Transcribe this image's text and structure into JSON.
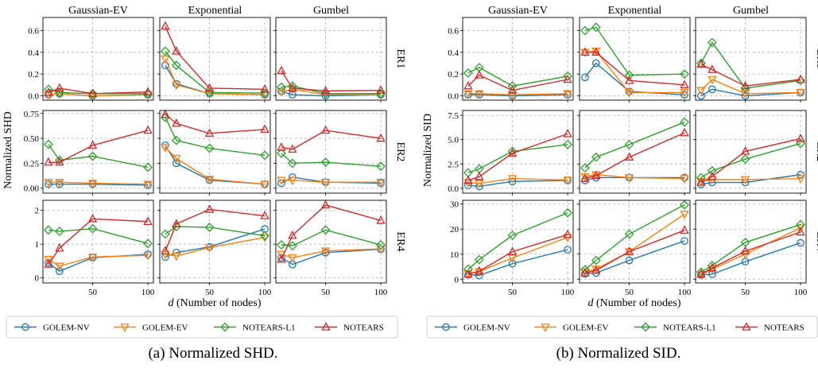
{
  "captions": [
    "(a) Normalized SHD.",
    "(b) Normalized SID."
  ],
  "legend_entries": [
    {
      "name": "GOLEM-NV",
      "color": "#1f77b4",
      "marker": "circle"
    },
    {
      "name": "GOLEM-EV",
      "color": "#ff7f0e",
      "marker": "triangle-down"
    },
    {
      "name": "NOTEARS-L1",
      "color": "#2ca02c",
      "marker": "diamond"
    },
    {
      "name": "NOTEARS",
      "color": "#d62728",
      "marker": "triangle-up"
    }
  ],
  "chart_data": [
    {
      "type": "line",
      "title": "Normalized SHD",
      "ylabel": "Normalized SHD",
      "xlabel": "d (Number of nodes)",
      "x": [
        10,
        20,
        50,
        100
      ],
      "xticks": [
        50,
        100
      ],
      "xlim": [
        5,
        105
      ],
      "col_titles": [
        "Gaussian-EV",
        "Exponential",
        "Gumbel"
      ],
      "row_titles": [
        "ER1",
        "ER2",
        "ER4"
      ],
      "row_ylims": [
        [
          -0.04,
          0.72
        ],
        [
          -0.05,
          0.78
        ],
        [
          -0.15,
          2.3
        ]
      ],
      "row_yticks": [
        [
          "0.0",
          "0.2",
          "0.4",
          "0.6"
        ],
        [
          "0.00",
          "0.25",
          "0.50",
          "0.75"
        ],
        [
          "0",
          "1",
          "2"
        ]
      ],
      "panels": [
        [
          {
            "GOLEM-NV": [
              0.01,
              0.02,
              0.0,
              0.01
            ],
            "GOLEM-EV": [
              0.01,
              0.02,
              0.0,
              0.01
            ],
            "NOTEARS-L1": [
              0.06,
              0.03,
              0.02,
              0.02
            ],
            "NOTEARS": [
              0.03,
              0.07,
              0.02,
              0.035
            ]
          },
          {
            "GOLEM-NV": [
              0.28,
              0.11,
              0.02,
              0.01
            ],
            "GOLEM-EV": [
              0.34,
              0.1,
              0.02,
              0.01
            ],
            "NOTEARS-L1": [
              0.41,
              0.28,
              0.03,
              0.025
            ],
            "NOTEARS": [
              0.64,
              0.41,
              0.07,
              0.06
            ]
          },
          {
            "GOLEM-NV": [
              0.04,
              0.01,
              0.0,
              0.01
            ],
            "GOLEM-EV": [
              0.04,
              0.06,
              0.01,
              0.01
            ],
            "NOTEARS-L1": [
              0.08,
              0.09,
              0.02,
              0.02
            ],
            "NOTEARS": [
              0.23,
              0.07,
              0.045,
              0.05
            ]
          }
        ],
        [
          {
            "GOLEM-NV": [
              0.04,
              0.04,
              0.04,
              0.03
            ],
            "GOLEM-EV": [
              0.06,
              0.06,
              0.05,
              0.04
            ],
            "NOTEARS-L1": [
              0.44,
              0.28,
              0.32,
              0.21
            ],
            "NOTEARS": [
              0.26,
              0.26,
              0.43,
              0.58
            ]
          },
          {
            "GOLEM-NV": [
              0.43,
              0.25,
              0.08,
              0.04
            ],
            "GOLEM-EV": [
              0.41,
              0.3,
              0.09,
              0.04
            ],
            "NOTEARS-L1": [
              0.71,
              0.48,
              0.4,
              0.33
            ],
            "NOTEARS": [
              0.74,
              0.65,
              0.55,
              0.59
            ]
          },
          {
            "GOLEM-NV": [
              0.05,
              0.11,
              0.06,
              0.05
            ],
            "GOLEM-EV": [
              0.08,
              0.08,
              0.06,
              0.06
            ],
            "NOTEARS-L1": [
              0.35,
              0.25,
              0.26,
              0.22
            ],
            "NOTEARS": [
              0.41,
              0.39,
              0.58,
              0.5
            ]
          }
        ],
        [
          {
            "GOLEM-NV": [
              0.45,
              0.2,
              0.6,
              0.7
            ],
            "GOLEM-EV": [
              0.55,
              0.35,
              0.62,
              0.67
            ],
            "NOTEARS-L1": [
              1.42,
              1.38,
              1.46,
              1.02
            ],
            "NOTEARS": [
              0.4,
              0.88,
              1.75,
              1.67
            ]
          },
          {
            "GOLEM-NV": [
              0.62,
              0.75,
              0.92,
              1.45
            ],
            "GOLEM-EV": [
              0.7,
              0.65,
              0.9,
              1.2
            ],
            "NOTEARS-L1": [
              1.3,
              1.52,
              1.5,
              1.25
            ],
            "NOTEARS": [
              0.8,
              1.6,
              2.03,
              1.84
            ]
          },
          {
            "GOLEM-NV": [
              0.6,
              0.4,
              0.75,
              0.85
            ],
            "GOLEM-EV": [
              0.7,
              0.6,
              0.8,
              0.86
            ],
            "NOTEARS-L1": [
              0.98,
              0.95,
              1.42,
              0.98
            ],
            "NOTEARS": [
              0.55,
              1.26,
              2.16,
              1.7
            ]
          }
        ]
      ]
    },
    {
      "type": "line",
      "title": "Normalized SID",
      "ylabel": "Normalized SID",
      "xlabel": "d (Number of nodes)",
      "x": [
        10,
        20,
        50,
        100
      ],
      "xticks": [
        50,
        100
      ],
      "xlim": [
        5,
        105
      ],
      "col_titles": [
        "Gaussian-EV",
        "Exponential",
        "Gumbel"
      ],
      "row_titles": [
        "ER1",
        "ER2",
        "ER4"
      ],
      "row_ylims": [
        [
          -0.04,
          0.72
        ],
        [
          -0.5,
          8.0
        ],
        [
          -1.5,
          31.5
        ]
      ],
      "row_yticks": [
        [
          "0.0",
          "0.2",
          "0.4",
          "0.6"
        ],
        [
          "0.0",
          "2.5",
          "5.0",
          "7.5"
        ],
        [
          "0",
          "10",
          "20",
          "30"
        ]
      ],
      "panels": [
        [
          {
            "GOLEM-NV": [
              0.01,
              0.01,
              0.0,
              0.01
            ],
            "GOLEM-EV": [
              0.02,
              0.02,
              0.01,
              0.02
            ],
            "NOTEARS-L1": [
              0.21,
              0.26,
              0.09,
              0.18
            ],
            "NOTEARS": [
              0.09,
              0.19,
              0.05,
              0.15
            ]
          },
          {
            "GOLEM-NV": [
              0.17,
              0.3,
              0.04,
              0.01
            ],
            "GOLEM-EV": [
              0.4,
              0.41,
              0.03,
              0.03
            ],
            "NOTEARS-L1": [
              0.6,
              0.63,
              0.19,
              0.2
            ],
            "NOTEARS": [
              0.4,
              0.4,
              0.14,
              0.1
            ]
          },
          {
            "GOLEM-NV": [
              0.0,
              0.06,
              0.0,
              0.03
            ],
            "GOLEM-EV": [
              0.05,
              0.15,
              0.02,
              0.03
            ],
            "NOTEARS-L1": [
              0.3,
              0.49,
              0.07,
              0.14
            ],
            "NOTEARS": [
              0.29,
              0.24,
              0.09,
              0.15
            ]
          }
        ],
        [
          {
            "GOLEM-NV": [
              0.3,
              0.2,
              0.7,
              0.8
            ],
            "GOLEM-EV": [
              0.6,
              0.5,
              1.0,
              0.85
            ],
            "NOTEARS-L1": [
              1.6,
              2.0,
              3.8,
              4.5
            ],
            "NOTEARS": [
              0.8,
              1.2,
              3.6,
              5.6
            ]
          },
          {
            "GOLEM-NV": [
              0.8,
              1.1,
              1.1,
              1.1
            ],
            "GOLEM-EV": [
              1.2,
              1.4,
              1.1,
              1.0
            ],
            "NOTEARS-L1": [
              2.1,
              3.2,
              4.5,
              6.8
            ],
            "NOTEARS": [
              1.0,
              1.3,
              3.2,
              5.7
            ]
          },
          {
            "GOLEM-NV": [
              0.4,
              0.6,
              0.6,
              1.4
            ],
            "GOLEM-EV": [
              0.7,
              0.9,
              0.9,
              1.0
            ],
            "NOTEARS-L1": [
              1.1,
              1.8,
              3.0,
              4.6
            ],
            "NOTEARS": [
              0.6,
              1.2,
              3.8,
              5.1
            ]
          }
        ],
        [
          {
            "GOLEM-NV": [
              1.8,
              1.5,
              6.2,
              11.8
            ],
            "GOLEM-EV": [
              2.3,
              3.0,
              8.5,
              16.7
            ],
            "NOTEARS-L1": [
              4.0,
              7.8,
              17.5,
              26.5
            ],
            "NOTEARS": [
              2.0,
              3.2,
              11.0,
              17.8
            ]
          },
          {
            "GOLEM-NV": [
              2.2,
              2.5,
              7.5,
              15.3
            ],
            "GOLEM-EV": [
              3.0,
              4.0,
              11.0,
              26.0
            ],
            "NOTEARS-L1": [
              3.8,
              7.5,
              18.0,
              29.7
            ],
            "NOTEARS": [
              2.5,
              3.5,
              11.0,
              19.5
            ]
          },
          {
            "GOLEM-NV": [
              1.7,
              2.0,
              7.0,
              14.5
            ],
            "GOLEM-EV": [
              1.8,
              4.0,
              10.0,
              20.5
            ],
            "NOTEARS-L1": [
              2.8,
              5.5,
              14.7,
              21.8
            ],
            "NOTEARS": [
              2.0,
              4.5,
              11.2,
              18.8
            ]
          }
        ]
      ]
    }
  ]
}
